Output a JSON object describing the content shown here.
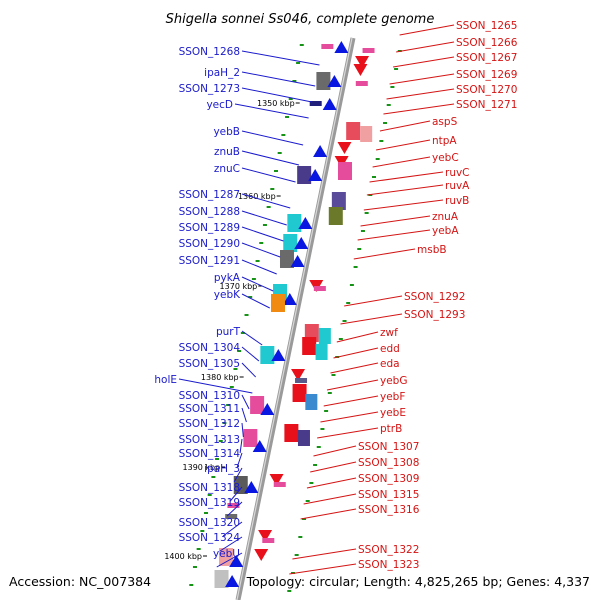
{
  "title": "Shigella sonnei Ss046, complete genome",
  "footer": {
    "accession": "Accession: NC_007384",
    "topology": "Topology: circular; Length: 4,825,265 bp; Genes: 4,337"
  },
  "colors": {
    "forward_label": "#1a1acc",
    "reverse_label": "#d41414",
    "forward_arrow": "#0a17e0",
    "reverse_arrow": "#e8101a",
    "backbone": "#9a9a9a",
    "tick": "#169216"
  },
  "kbp_ticks": [
    "1350 kbp",
    "1360 kbp",
    "1370 kbp",
    "1380 kbp",
    "1390 kbp",
    "1400 kbp"
  ],
  "left_genes": [
    "SSON_1268",
    "ipaH_2",
    "SSON_1273",
    "yecD",
    "yebB",
    "znuB",
    "znuC",
    "SSON_1287",
    "SSON_1288",
    "SSON_1289",
    "SSON_1290",
    "SSON_1291",
    "pykA",
    "yebK",
    "purT",
    "SSON_1304",
    "SSON_1305",
    "holE",
    "SSON_1310",
    "SSON_1311",
    "SSON_1312",
    "SSON_1313",
    "SSON_1314",
    "ipaH_3",
    "SSON_1318",
    "SSON_1319",
    "SSON_1320",
    "SSON_1324",
    "yebU"
  ],
  "right_genes": [
    "SSON_1265",
    "SSON_1266",
    "SSON_1267",
    "SSON_1269",
    "SSON_1270",
    "SSON_1271",
    "aspS",
    "ntpA",
    "yebC",
    "ruvC",
    "ruvA",
    "ruvB",
    "znuA",
    "yebA",
    "msbB",
    "SSON_1292",
    "SSON_1293",
    "zwf",
    "edd",
    "eda",
    "yebG",
    "yebF",
    "yebE",
    "ptrB",
    "SSON_1307",
    "SSON_1308",
    "SSON_1309",
    "SSON_1315",
    "SSON_1316",
    "SSON_1322",
    "SSON_1323"
  ]
}
